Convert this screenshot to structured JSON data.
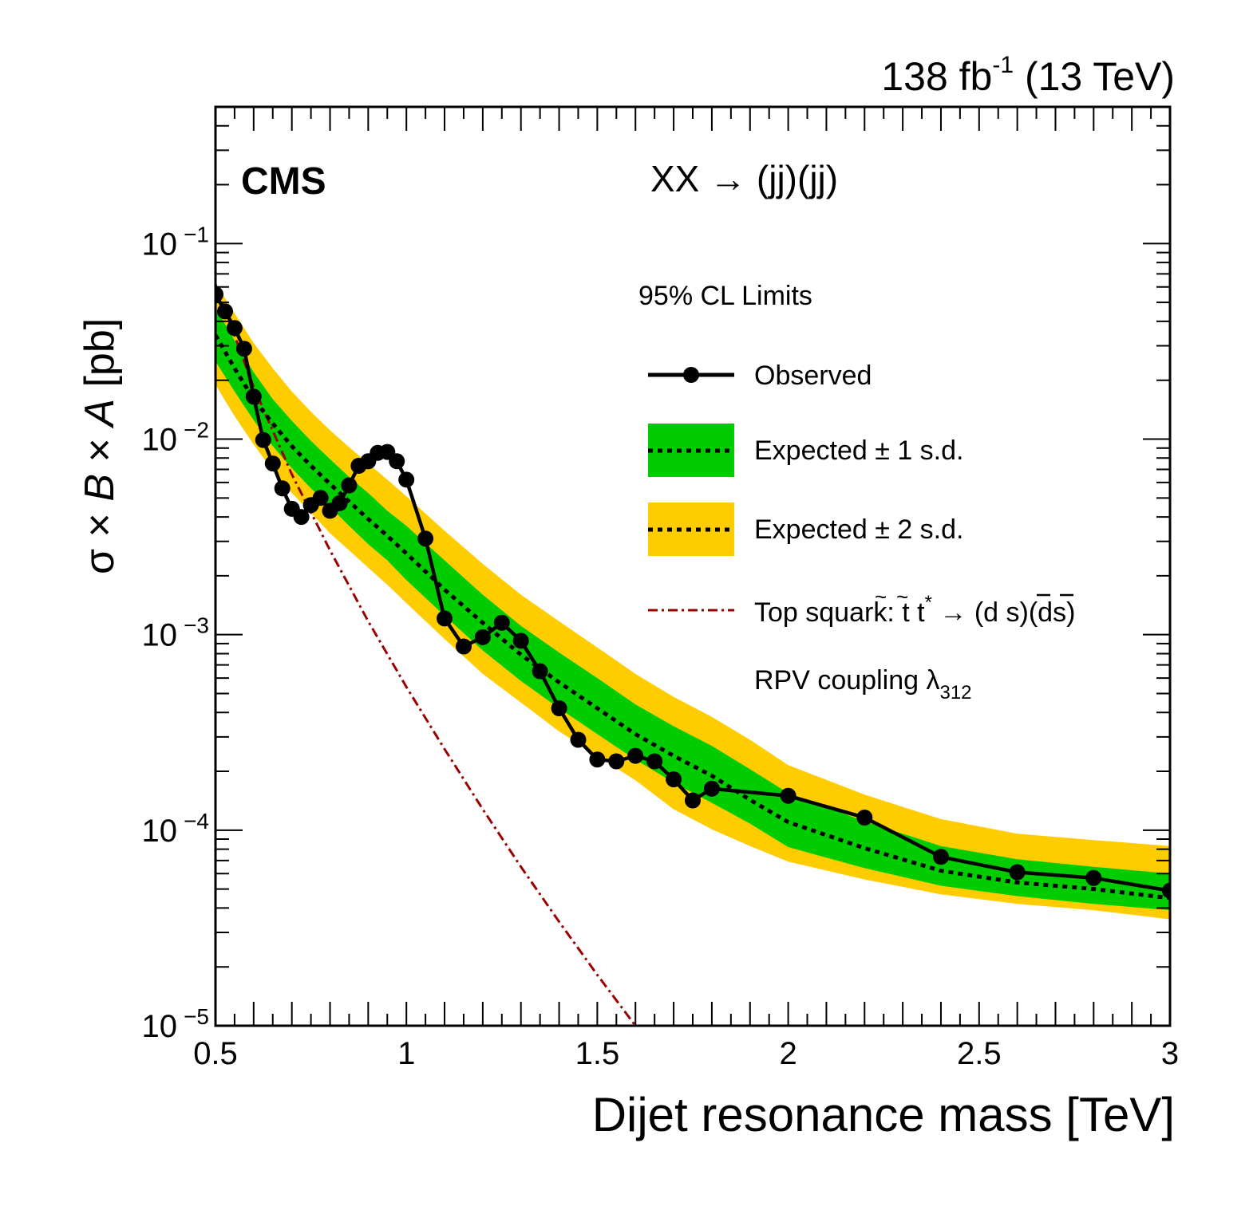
{
  "chart_data": {
    "type": "line",
    "experiment": "CMS",
    "lumi": {
      "value": "138 fb",
      "exp": "-1",
      "energy": "(13 TeV)"
    },
    "process": "XX → (jj)(jj)",
    "xlabel": "Dijet resonance mass [TeV]",
    "ylabel": {
      "sigma": "σ",
      "times": "×",
      "B": "B",
      "A": "A",
      "unit": "[pb]"
    },
    "xlim": [
      0.5,
      3.0
    ],
    "ylim": [
      1e-05,
      0.5
    ],
    "yscale": "log",
    "x_ticks": [
      {
        "v": 0.5,
        "label": "0.5"
      },
      {
        "v": 1.0,
        "label": "1"
      },
      {
        "v": 1.5,
        "label": "1.5"
      },
      {
        "v": 2.0,
        "label": "2"
      },
      {
        "v": 2.5,
        "label": "2.5"
      },
      {
        "v": 3.0,
        "label": "3"
      }
    ],
    "y_ticks": [
      {
        "v": 1e-05,
        "base": "10",
        "exp": "−5"
      },
      {
        "v": 0.0001,
        "base": "10",
        "exp": "−4"
      },
      {
        "v": 0.001,
        "base": "10",
        "exp": "−3"
      },
      {
        "v": 0.01,
        "base": "10",
        "exp": "−2"
      },
      {
        "v": 0.1,
        "base": "10",
        "exp": "−1"
      }
    ],
    "legend": {
      "header": "95% CL Limits",
      "observed": "Observed",
      "exp1": "Expected ± 1 s.d.",
      "exp2": "Expected ± 2 s.d.",
      "theory_prefix": "Top squark: ",
      "theory_suffix": " → (",
      "theory_end": ")(ds)",
      "t": "t",
      "tilde": "~",
      "star": "*",
      "d": "d",
      "s": "s",
      "theory_note": "RPV coupling ",
      "lambda": "λ",
      "lambda_sub": "312"
    },
    "colors": {
      "observed": "#000000",
      "one_sigma": "#00cc00",
      "two_sigma": "#ffcc00",
      "theory": "#990000"
    },
    "observed": {
      "x": [
        0.5,
        0.525,
        0.55,
        0.575,
        0.6,
        0.625,
        0.65,
        0.675,
        0.7,
        0.725,
        0.75,
        0.775,
        0.8,
        0.825,
        0.85,
        0.875,
        0.9,
        0.925,
        0.95,
        0.975,
        1.0,
        1.05,
        1.1,
        1.15,
        1.2,
        1.25,
        1.3,
        1.35,
        1.4,
        1.45,
        1.5,
        1.55,
        1.6,
        1.65,
        1.7,
        1.75,
        1.8,
        2.0,
        2.2,
        2.4,
        2.6,
        2.8,
        3.0
      ],
      "y": [
        0.055,
        0.045,
        0.037,
        0.029,
        0.0165,
        0.0099,
        0.0075,
        0.0056,
        0.0044,
        0.004,
        0.0046,
        0.005,
        0.0043,
        0.0047,
        0.0058,
        0.0073,
        0.0077,
        0.0085,
        0.0086,
        0.0077,
        0.0062,
        0.0031,
        0.00121,
        0.00087,
        0.00097,
        0.00115,
        0.00093,
        0.00065,
        0.00042,
        0.00029,
        0.00023,
        0.000225,
        0.00024,
        0.000225,
        0.000182,
        0.000142,
        0.000163,
        0.00015,
        0.000116,
        7.3e-05,
        6.1e-05,
        5.7e-05,
        4.9e-05
      ]
    },
    "expected": {
      "x": [
        0.5,
        0.55,
        0.6,
        0.65,
        0.7,
        0.75,
        0.8,
        0.85,
        0.9,
        0.95,
        1.0,
        1.1,
        1.2,
        1.3,
        1.4,
        1.5,
        1.6,
        1.7,
        1.8,
        1.9,
        2.0,
        2.2,
        2.4,
        2.6,
        2.8,
        3.0
      ],
      "y": [
        0.034,
        0.023,
        0.016,
        0.012,
        0.0092,
        0.0073,
        0.0059,
        0.0048,
        0.0039,
        0.0032,
        0.0026,
        0.0017,
        0.00115,
        0.00079,
        0.00057,
        0.00042,
        0.00031,
        0.00024,
        0.00019,
        0.000143,
        0.00011,
        8.1e-05,
        6.2e-05,
        5.4e-05,
        5e-05,
        4.5e-05
      ],
      "one_sigma_low": [
        0.025,
        0.0175,
        0.0125,
        0.0092,
        0.0071,
        0.0056,
        0.0045,
        0.0036,
        0.0029,
        0.0024,
        0.0019,
        0.00125,
        0.00083,
        0.00058,
        0.00042,
        0.00031,
        0.00023,
        0.000175,
        0.000138,
        0.000108,
        8.2e-05,
        6.4e-05,
        5.2e-05,
        4.6e-05,
        4.2e-05,
        3.9e-05
      ],
      "one_sigma_high": [
        0.047,
        0.032,
        0.022,
        0.016,
        0.0124,
        0.0098,
        0.0079,
        0.0064,
        0.0053,
        0.0043,
        0.0036,
        0.0024,
        0.0016,
        0.00111,
        0.00081,
        0.0006,
        0.00044,
        0.00034,
        0.00027,
        0.000205,
        0.000155,
        0.000111,
        8.3e-05,
        7.1e-05,
        6.5e-05,
        6e-05
      ],
      "two_sigma_low": [
        0.019,
        0.0131,
        0.0094,
        0.0069,
        0.0053,
        0.0042,
        0.0033,
        0.0027,
        0.0022,
        0.0018,
        0.00145,
        0.00095,
        0.00063,
        0.00045,
        0.00032,
        0.00024,
        0.00018,
        0.000128,
        0.000101,
        8.3e-05,
        6.9e-05,
        5.6e-05,
        4.7e-05,
        4.2e-05,
        3.9e-05,
        3.5e-05
      ],
      "two_sigma_high": [
        0.063,
        0.044,
        0.031,
        0.023,
        0.0175,
        0.0138,
        0.0111,
        0.0091,
        0.0075,
        0.0062,
        0.0051,
        0.0034,
        0.0023,
        0.0016,
        0.00117,
        0.00086,
        0.00063,
        0.00048,
        0.00038,
        0.00029,
        0.000215,
        0.000152,
        0.000114,
        9.6e-05,
        8.9e-05,
        8.3e-05
      ]
    },
    "theory": {
      "x": [
        0.5,
        0.6,
        0.7,
        0.8,
        0.9,
        1.0,
        1.1,
        1.2,
        1.3,
        1.4,
        1.5,
        1.6,
        1.7
      ],
      "y": [
        0.062,
        0.0185,
        0.0066,
        0.0027,
        0.00117,
        0.00054,
        0.00026,
        0.000128,
        6.5e-05,
        3.4e-05,
        1.82e-05,
        1e-05,
        5.6e-06
      ]
    }
  }
}
